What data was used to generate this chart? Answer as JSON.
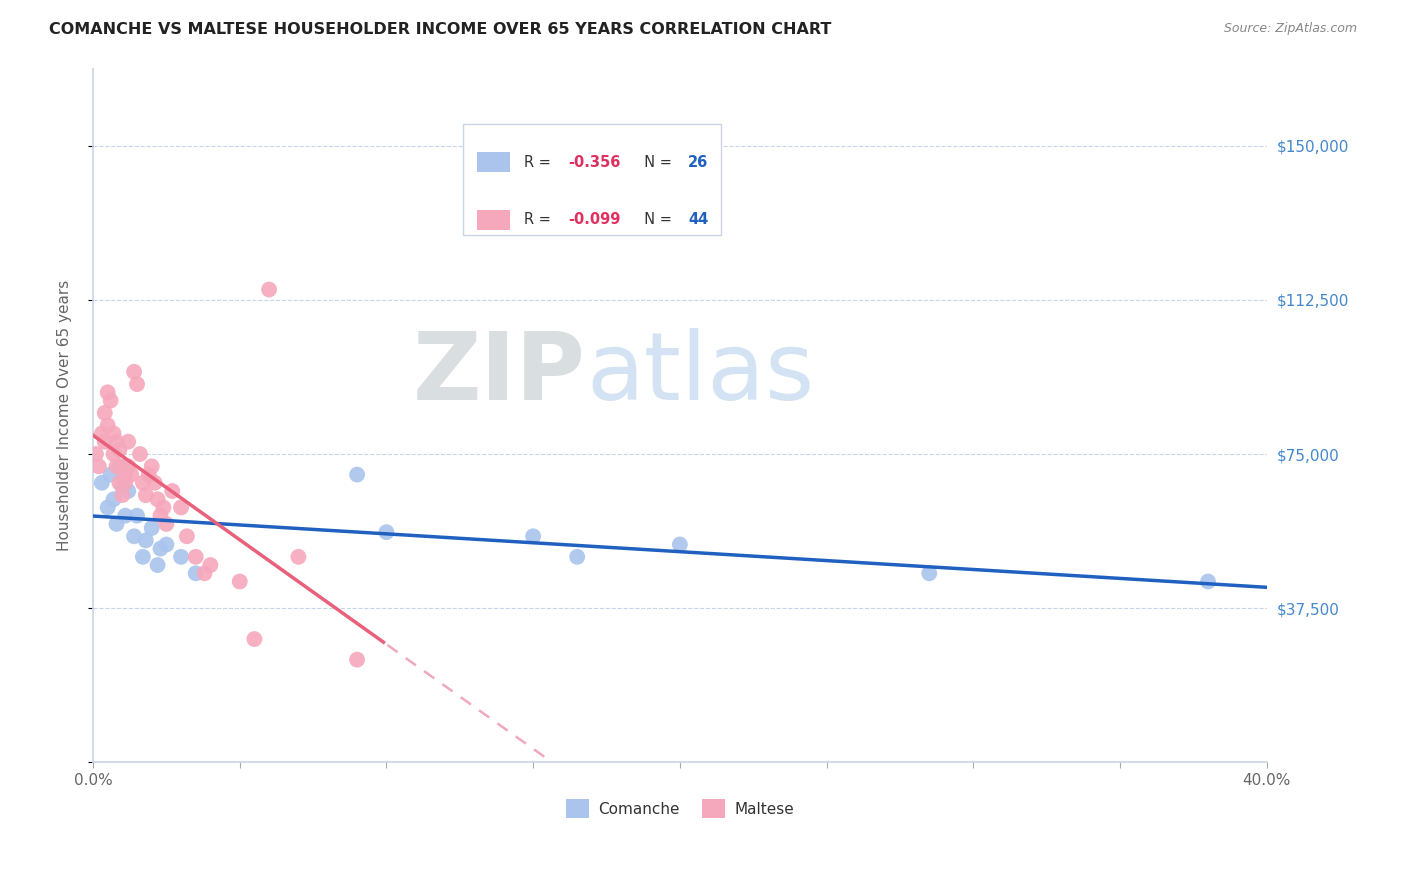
{
  "title": "COMANCHE VS MALTESE HOUSEHOLDER INCOME OVER 65 YEARS CORRELATION CHART",
  "source": "Source: ZipAtlas.com",
  "ylabel": "Householder Income Over 65 years",
  "watermark_zip": "ZIP",
  "watermark_atlas": "atlas",
  "xlim": [
    0.0,
    0.4
  ],
  "ylim": [
    0,
    168750
  ],
  "yticks": [
    0,
    37500,
    75000,
    112500,
    150000
  ],
  "ytick_labels": [
    "",
    "$37,500",
    "$75,000",
    "$112,500",
    "$150,000"
  ],
  "xticks": [
    0.0,
    0.05,
    0.1,
    0.15,
    0.2,
    0.25,
    0.3,
    0.35,
    0.4
  ],
  "xtick_labels": [
    "0.0%",
    "",
    "",
    "",
    "",
    "",
    "",
    "",
    "40.0%"
  ],
  "comanche_R": -0.356,
  "comanche_N": 26,
  "maltese_R": -0.099,
  "maltese_N": 44,
  "comanche_color": "#aac4ed",
  "maltese_color": "#f5a8bc",
  "comanche_line_color": "#2060c0",
  "maltese_line_color": "#e8607a",
  "maltese_dash_color": "#f0a8bc",
  "background_color": "#ffffff",
  "grid_color": "#c8d4e8",
  "title_color": "#222222",
  "source_color": "#888888",
  "right_label_color": "#4488cc",
  "comanche_x": [
    0.003,
    0.005,
    0.006,
    0.007,
    0.008,
    0.009,
    0.01,
    0.011,
    0.012,
    0.014,
    0.015,
    0.017,
    0.018,
    0.02,
    0.022,
    0.023,
    0.025,
    0.03,
    0.035,
    0.09,
    0.1,
    0.15,
    0.165,
    0.2,
    0.285,
    0.38
  ],
  "comanche_y": [
    68000,
    62000,
    70000,
    64000,
    58000,
    72000,
    67000,
    60000,
    66000,
    55000,
    60000,
    50000,
    54000,
    57000,
    48000,
    52000,
    53000,
    50000,
    46000,
    70000,
    56000,
    55000,
    50000,
    53000,
    46000,
    44000
  ],
  "maltese_x": [
    0.001,
    0.002,
    0.003,
    0.004,
    0.004,
    0.005,
    0.005,
    0.006,
    0.007,
    0.007,
    0.008,
    0.008,
    0.009,
    0.009,
    0.01,
    0.01,
    0.011,
    0.011,
    0.012,
    0.012,
    0.013,
    0.014,
    0.015,
    0.016,
    0.017,
    0.018,
    0.019,
    0.02,
    0.021,
    0.022,
    0.023,
    0.024,
    0.025,
    0.027,
    0.03,
    0.032,
    0.035,
    0.038,
    0.04,
    0.05,
    0.055,
    0.06,
    0.07,
    0.09
  ],
  "maltese_y": [
    75000,
    72000,
    80000,
    85000,
    78000,
    90000,
    82000,
    88000,
    80000,
    75000,
    78000,
    72000,
    76000,
    68000,
    72000,
    65000,
    70000,
    68000,
    78000,
    72000,
    70000,
    95000,
    92000,
    75000,
    68000,
    65000,
    70000,
    72000,
    68000,
    64000,
    60000,
    62000,
    58000,
    66000,
    62000,
    55000,
    50000,
    46000,
    48000,
    44000,
    30000,
    115000,
    50000,
    25000
  ],
  "legend_R_color": "#e03060",
  "legend_N_color": "#2060c0",
  "legend_label_color": "#333333"
}
